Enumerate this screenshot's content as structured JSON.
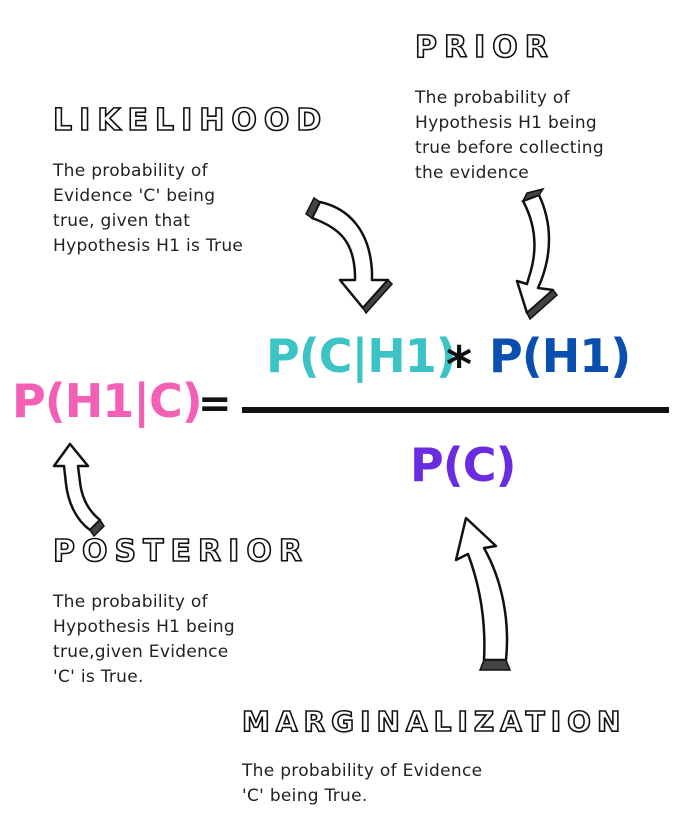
{
  "prior": {
    "heading": "PRIOR",
    "lines": [
      "The probability of",
      "Hypothesis H1 being",
      "true before collecting",
      "the evidence"
    ]
  },
  "likelihood": {
    "heading": "LIKELIHOOD",
    "lines": [
      "The probability of",
      "Evidence 'C' being",
      "true, given that",
      "Hypothesis H1 is True"
    ]
  },
  "posterior": {
    "heading": "POSTERIOR",
    "lines": [
      "The probability of",
      "Hypothesis H1 being",
      "true,given Evidence",
      "'C' is True."
    ]
  },
  "marginalization": {
    "heading": "MARGINALIZATION",
    "lines": [
      "The probability of Evidence",
      "'C' being True."
    ]
  },
  "formula": {
    "posterior_term": "P(H1|C)",
    "equals": "=",
    "likelihood_term": "P(C|H1)",
    "multiply": "*",
    "prior_term": "P(H1)",
    "evidence_term": "P(C)"
  },
  "colors": {
    "posterior": "#f25fb4",
    "likelihood": "#3cc3c6",
    "prior": "#0a4fb0",
    "evidence": "#6a2ce0",
    "ink": "#111111"
  }
}
